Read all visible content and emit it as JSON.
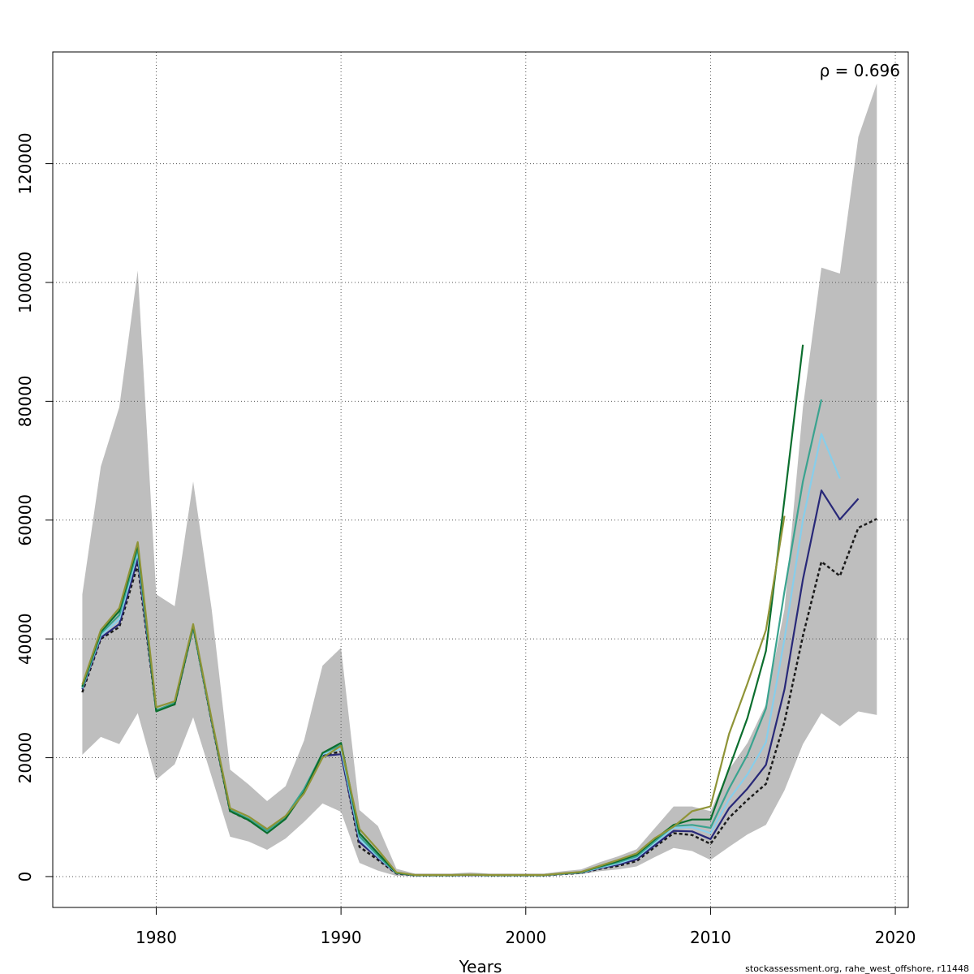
{
  "chart_data": {
    "type": "line",
    "title": "",
    "xlabel": "Years",
    "ylabel": "",
    "xlim": [
      1974.4,
      2020.7
    ],
    "ylim": [
      -5200,
      138800
    ],
    "x_ticks": [
      1980,
      1990,
      2000,
      2010,
      2020
    ],
    "y_ticks": [
      0,
      20000,
      40000,
      60000,
      80000,
      100000,
      120000
    ],
    "grid": true,
    "annotation": "ρ = 0.696",
    "credit": "stockassessment.org, rahe_west_offshore, r11448",
    "band": {
      "color": "#bebebe",
      "x": [
        1976,
        1977,
        1978,
        1979,
        1980,
        1981,
        1982,
        1983,
        1984,
        1985,
        1986,
        1987,
        1988,
        1989,
        1990,
        1991,
        1992,
        1993,
        1994,
        1995,
        1996,
        1997,
        1998,
        1999,
        2000,
        2001,
        2002,
        2003,
        2004,
        2005,
        2006,
        2007,
        2008,
        2009,
        2010,
        2011,
        2012,
        2013,
        2014,
        2015,
        2016,
        2017,
        2018,
        2019
      ],
      "upper": [
        47500,
        69000,
        79000,
        102000,
        47500,
        45500,
        66500,
        45000,
        18000,
        15500,
        12700,
        15200,
        22900,
        35500,
        38500,
        11200,
        8500,
        1300,
        500,
        500,
        500,
        700,
        500,
        500,
        500,
        500,
        900,
        1200,
        2400,
        3400,
        4600,
        8200,
        11800,
        11800,
        11000,
        18000,
        22500,
        29000,
        45000,
        79000,
        102500,
        101500,
        124500,
        133500
      ],
      "lower": [
        20500,
        23500,
        22300,
        27500,
        16300,
        18900,
        26800,
        16800,
        6700,
        5900,
        4500,
        6400,
        9200,
        12300,
        10900,
        2300,
        1000,
        100,
        50,
        50,
        50,
        50,
        50,
        50,
        50,
        50,
        300,
        400,
        900,
        1200,
        1700,
        3300,
        4800,
        4300,
        2800,
        5000,
        7100,
        8700,
        14500,
        22300,
        27500,
        25300,
        27800,
        27200
      ]
    },
    "series": [
      {
        "color": "#1a1a1a",
        "dashed": true,
        "x": [
          1976,
          1977,
          1978,
          1979,
          1980,
          1981,
          1982,
          1983,
          1984,
          1985,
          1986,
          1987,
          1988,
          1989,
          1990,
          1991,
          1992,
          1993,
          1994,
          1995,
          1996,
          1997,
          1998,
          1999,
          2000,
          2001,
          2002,
          2003,
          2004,
          2005,
          2006,
          2007,
          2008,
          2009,
          2010,
          2011,
          2012,
          2013,
          2014,
          2015,
          2016,
          2017,
          2018,
          2019
        ],
        "values": [
          31000,
          40000,
          42000,
          52500,
          28000,
          29000,
          42000,
          26000,
          11000,
          9500,
          7500,
          10000,
          14500,
          20500,
          21000,
          5000,
          2800,
          500,
          200,
          200,
          200,
          250,
          200,
          200,
          200,
          200,
          400,
          600,
          1300,
          1800,
          2600,
          5000,
          7300,
          7000,
          5500,
          9900,
          12900,
          15600,
          26000,
          40500,
          53000,
          50600,
          58700,
          60200
        ]
      },
      {
        "color": "#282878",
        "dashed": false,
        "x": [
          1976,
          1977,
          1978,
          1979,
          1980,
          1981,
          1982,
          1983,
          1984,
          1985,
          1986,
          1987,
          1988,
          1989,
          1990,
          1991,
          1992,
          1993,
          1994,
          1995,
          1996,
          1997,
          1998,
          1999,
          2000,
          2001,
          2002,
          2003,
          2004,
          2005,
          2006,
          2007,
          2008,
          2009,
          2010,
          2011,
          2012,
          2013,
          2014,
          2015,
          2016,
          2017,
          2018
        ],
        "values": [
          31500,
          40200,
          42500,
          53500,
          28000,
          29000,
          42000,
          26100,
          11100,
          9600,
          7600,
          10000,
          14600,
          20300,
          20600,
          5800,
          3100,
          550,
          220,
          220,
          220,
          270,
          220,
          220,
          220,
          220,
          450,
          650,
          1400,
          2000,
          2900,
          5300,
          7700,
          7600,
          6300,
          11500,
          14800,
          18800,
          31500,
          50000,
          65000,
          60100,
          63600
        ]
      },
      {
        "color": "#87ceeb",
        "dashed": false,
        "x": [
          1976,
          1977,
          1978,
          1979,
          1980,
          1981,
          1982,
          1983,
          1984,
          1985,
          1986,
          1987,
          1988,
          1989,
          1990,
          1991,
          1992,
          1993,
          1994,
          1995,
          1996,
          1997,
          1998,
          1999,
          2000,
          2001,
          2002,
          2003,
          2004,
          2005,
          2006,
          2007,
          2008,
          2009,
          2010,
          2011,
          2012,
          2013,
          2014,
          2015,
          2016,
          2017
        ],
        "values": [
          31700,
          40600,
          43300,
          54500,
          28000,
          29100,
          42000,
          26200,
          11200,
          9700,
          7600,
          10100,
          14700,
          20600,
          21500,
          6300,
          3300,
          580,
          230,
          230,
          230,
          280,
          230,
          230,
          230,
          230,
          470,
          680,
          1500,
          2200,
          3200,
          5700,
          8200,
          8300,
          7300,
          13000,
          17200,
          22600,
          40000,
          60000,
          74500,
          67000
        ]
      },
      {
        "color": "#3aa38f",
        "dashed": false,
        "x": [
          1976,
          1977,
          1978,
          1979,
          1980,
          1981,
          1982,
          1983,
          1984,
          1985,
          1986,
          1987,
          1988,
          1989,
          1990,
          1991,
          1992,
          1993,
          1994,
          1995,
          1996,
          1997,
          1998,
          1999,
          2000,
          2001,
          2002,
          2003,
          2004,
          2005,
          2006,
          2007,
          2008,
          2009,
          2010,
          2011,
          2012,
          2013,
          2014,
          2015,
          2016
        ],
        "values": [
          31800,
          40900,
          44000,
          55200,
          28000,
          29200,
          42000,
          26200,
          11200,
          9700,
          7700,
          10100,
          14700,
          20800,
          22100,
          6800,
          3500,
          600,
          240,
          240,
          240,
          290,
          240,
          240,
          240,
          240,
          490,
          710,
          1600,
          2400,
          3400,
          6000,
          8500,
          8700,
          8200,
          14800,
          20500,
          28300,
          48000,
          66500,
          80300
        ]
      },
      {
        "color": "#0b6e2e",
        "dashed": false,
        "x": [
          1976,
          1977,
          1978,
          1979,
          1980,
          1981,
          1982,
          1983,
          1984,
          1985,
          1986,
          1987,
          1988,
          1989,
          1990,
          1991,
          1992,
          1993,
          1994,
          1995,
          1996,
          1997,
          1998,
          1999,
          2000,
          2001,
          2002,
          2003,
          2004,
          2005,
          2006,
          2007,
          2008,
          2009,
          2010,
          2011,
          2012,
          2013,
          2014,
          2015
        ],
        "values": [
          32000,
          41200,
          44700,
          55800,
          27800,
          29000,
          42200,
          26300,
          11000,
          9500,
          7300,
          9700,
          14200,
          20800,
          22500,
          7300,
          3900,
          620,
          250,
          250,
          250,
          300,
          250,
          250,
          250,
          250,
          510,
          740,
          1700,
          2600,
          3700,
          6300,
          8700,
          9600,
          9600,
          18200,
          26700,
          38000,
          63500,
          89500
        ]
      },
      {
        "color": "#8f9437",
        "dashed": false,
        "x": [
          1976,
          1977,
          1978,
          1979,
          1980,
          1981,
          1982,
          1983,
          1984,
          1985,
          1986,
          1987,
          1988,
          1989,
          1990,
          1991,
          1992,
          1993,
          1994,
          1995,
          1996,
          1997,
          1998,
          1999,
          2000,
          2001,
          2002,
          2003,
          2004,
          2005,
          2006,
          2007,
          2008,
          2009,
          2010,
          2011,
          2012,
          2013,
          2014
        ],
        "values": [
          32300,
          41500,
          45200,
          56300,
          28500,
          29500,
          42500,
          26500,
          11500,
          10100,
          8000,
          10200,
          14000,
          20000,
          22000,
          8000,
          4500,
          700,
          270,
          270,
          270,
          320,
          270,
          270,
          270,
          270,
          540,
          780,
          1800,
          2800,
          3900,
          6500,
          8400,
          11000,
          11800,
          24000,
          32500,
          41500,
          60700
        ]
      }
    ]
  }
}
